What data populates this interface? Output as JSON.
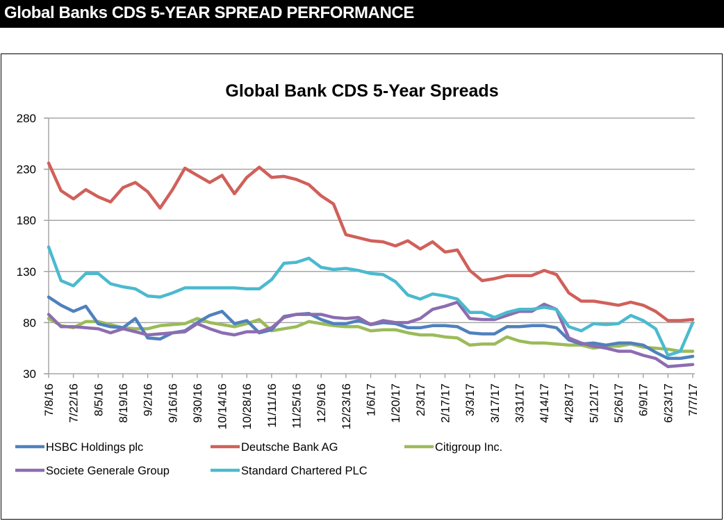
{
  "banner": {
    "title": "Global Banks CDS 5-YEAR SPREAD PERFORMANCE"
  },
  "chart_data": {
    "type": "line",
    "title": "Global Bank CDS 5-Year Spreads",
    "xlabel": "",
    "ylabel": "",
    "ylim": [
      30,
      280
    ],
    "yticks": [
      30,
      80,
      130,
      180,
      230,
      280
    ],
    "grid": true,
    "legend_position": "bottom",
    "x": [
      "7/8/16",
      "7/15/16",
      "7/22/16",
      "7/29/16",
      "8/5/16",
      "8/12/16",
      "8/19/16",
      "8/26/16",
      "9/2/16",
      "9/9/16",
      "9/16/16",
      "9/23/16",
      "9/30/16",
      "10/7/16",
      "10/14/16",
      "10/21/16",
      "10/28/16",
      "11/4/16",
      "11/11/16",
      "11/18/16",
      "11/25/16",
      "12/2/16",
      "12/9/16",
      "12/16/16",
      "12/23/16",
      "12/30/16",
      "1/6/17",
      "1/13/17",
      "1/20/17",
      "1/27/17",
      "2/3/17",
      "2/10/17",
      "2/17/17",
      "2/24/17",
      "3/3/17",
      "3/10/17",
      "3/17/17",
      "3/24/17",
      "3/31/17",
      "4/7/17",
      "4/14/17",
      "4/21/17",
      "4/28/17",
      "5/5/17",
      "5/12/17",
      "5/19/17",
      "5/26/17",
      "6/2/17",
      "6/9/17",
      "6/16/17",
      "6/23/17",
      "6/30/17",
      "7/7/17"
    ],
    "xtick_labels": [
      "7/8/16",
      "7/22/16",
      "8/5/16",
      "8/19/16",
      "9/2/16",
      "9/16/16",
      "9/30/16",
      "10/14/16",
      "10/28/16",
      "11/11/16",
      "11/25/16",
      "12/9/16",
      "12/23/16",
      "1/6/17",
      "1/20/17",
      "2/3/17",
      "2/17/17",
      "3/3/17",
      "3/17/17",
      "3/31/17",
      "4/14/17",
      "4/28/17",
      "5/12/17",
      "5/26/17",
      "6/9/17",
      "6/23/17",
      "7/7/17"
    ],
    "series": [
      {
        "name": "HSBC Holdings plc",
        "color": "#4F81BD",
        "values": [
          105,
          97,
          91,
          96,
          79,
          76,
          75,
          84,
          65,
          64,
          70,
          72,
          80,
          87,
          91,
          79,
          82,
          70,
          73,
          86,
          88,
          89,
          83,
          79,
          79,
          82,
          78,
          80,
          79,
          75,
          75,
          77,
          77,
          76,
          70,
          69,
          69,
          76,
          76,
          77,
          77,
          75,
          63,
          59,
          60,
          58,
          60,
          60,
          58,
          51,
          45,
          45,
          47
        ]
      },
      {
        "name": "Deutsche Bank AG",
        "color": "#D0605A",
        "values": [
          236,
          209,
          201,
          210,
          203,
          198,
          212,
          217,
          208,
          192,
          210,
          231,
          224,
          217,
          224,
          206,
          222,
          232,
          222,
          223,
          220,
          215,
          204,
          196,
          166,
          163,
          160,
          159,
          155,
          160,
          152,
          159,
          149,
          151,
          131,
          121,
          123,
          126,
          126,
          126,
          131,
          127,
          109,
          101,
          101,
          99,
          97,
          100,
          97,
          91,
          82,
          82,
          83
        ]
      },
      {
        "name": "Citigroup Inc.",
        "color": "#9BBB59",
        "values": [
          84,
          77,
          75,
          81,
          81,
          78,
          75,
          74,
          74,
          77,
          78,
          79,
          84,
          80,
          78,
          76,
          79,
          83,
          72,
          74,
          76,
          81,
          79,
          77,
          76,
          76,
          72,
          73,
          73,
          70,
          68,
          68,
          66,
          65,
          58,
          59,
          59,
          66,
          62,
          60,
          60,
          59,
          58,
          58,
          55,
          57,
          57,
          59,
          56,
          55,
          54,
          52,
          52
        ]
      },
      {
        "name": "Societe Generale Group",
        "color": "#8C6DB0",
        "values": [
          88,
          76,
          76,
          75,
          74,
          70,
          74,
          71,
          68,
          69,
          70,
          71,
          79,
          74,
          70,
          68,
          71,
          71,
          75,
          85,
          88,
          88,
          88,
          85,
          84,
          85,
          78,
          82,
          80,
          80,
          84,
          93,
          96,
          100,
          84,
          83,
          83,
          87,
          91,
          91,
          98,
          93,
          65,
          60,
          57,
          55,
          52,
          52,
          48,
          45,
          37,
          38,
          39
        ]
      },
      {
        "name": "Standard Chartered PLC",
        "color": "#4BBACE",
        "values": [
          154,
          121,
          116,
          128,
          128,
          118,
          115,
          113,
          106,
          105,
          109,
          114,
          114,
          114,
          114,
          114,
          113,
          113,
          122,
          138,
          139,
          143,
          134,
          132,
          133,
          131,
          128,
          127,
          120,
          107,
          103,
          108,
          106,
          103,
          90,
          90,
          85,
          90,
          93,
          93,
          95,
          93,
          76,
          72,
          79,
          78,
          79,
          87,
          82,
          74,
          48,
          52,
          80
        ]
      }
    ]
  }
}
